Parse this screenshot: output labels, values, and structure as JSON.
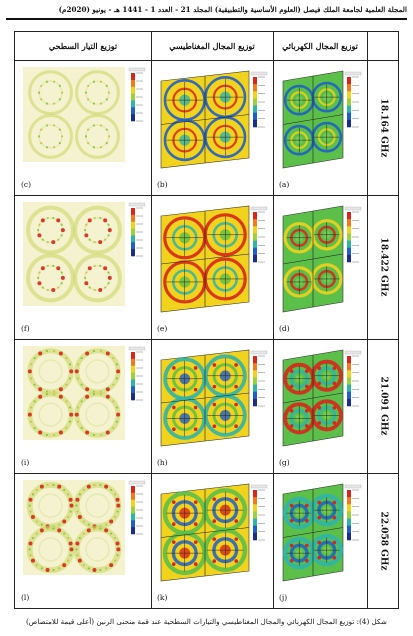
{
  "header": {
    "text": "المجلة العلمية لجامعة الملك فيصل (العلوم الأساسية والتطبيقية)      المجلد 21 - العدد 1 - 1441 هـ - يونيو (2020م)"
  },
  "table": {
    "columns": [
      "توزيع المجال الكهربائي",
      "توزيع المجال المغناطيسي",
      "توزيع التيار السطحي"
    ],
    "rows": [
      {
        "freq": "18.164 GHz",
        "labels": [
          "(a)",
          "(b)",
          "(c)"
        ]
      },
      {
        "freq": "18.422 GHz",
        "labels": [
          "(d)",
          "(e)",
          "(f)"
        ]
      },
      {
        "freq": "21.091 GHz",
        "labels": [
          "(g)",
          "(h)",
          "(i)"
        ]
      },
      {
        "freq": "22.058 GHz",
        "labels": [
          "(j)",
          "(k)",
          "(l)"
        ]
      }
    ]
  },
  "colors": {
    "field_green": "#5bbf4a",
    "field_blue": "#1f5fc8",
    "field_red": "#d8261c",
    "field_yellow": "#f1d21d",
    "current_bg": "#f5f3cf",
    "current_ring": "#c9d86a"
  },
  "caption": {
    "text": "شكل (4): توزيع المجال الكهربائي والمجال المغناطيسي والتيارات السطحية عند قمة منحنى الرنين (أعلى قيمة للامتصاص)"
  }
}
